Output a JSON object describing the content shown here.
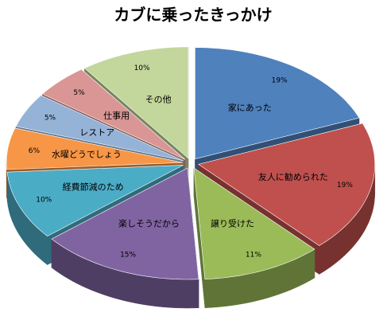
{
  "chart_data": {
    "type": "pie3d",
    "title": "カブに乗ったきっかけ",
    "categories": [
      "家にあった",
      "友人に勧められた",
      "譲り受けた",
      "楽しそうだから",
      "経費節減のため",
      "水曜どうでしょう",
      "レストア",
      "仕事用",
      "その他"
    ],
    "values": [
      19,
      19,
      11,
      15,
      10,
      6,
      5,
      5,
      10
    ],
    "value_labels": [
      "19%",
      "19%",
      "11%",
      "15%",
      "10%",
      "6%",
      "5%",
      "5%",
      "10%"
    ],
    "colors": [
      "#4f81bd",
      "#c0504d",
      "#9bbb59",
      "#8064a2",
      "#4bacc6",
      "#f79646",
      "#95b3d7",
      "#d99694",
      "#c3d69b"
    ]
  }
}
